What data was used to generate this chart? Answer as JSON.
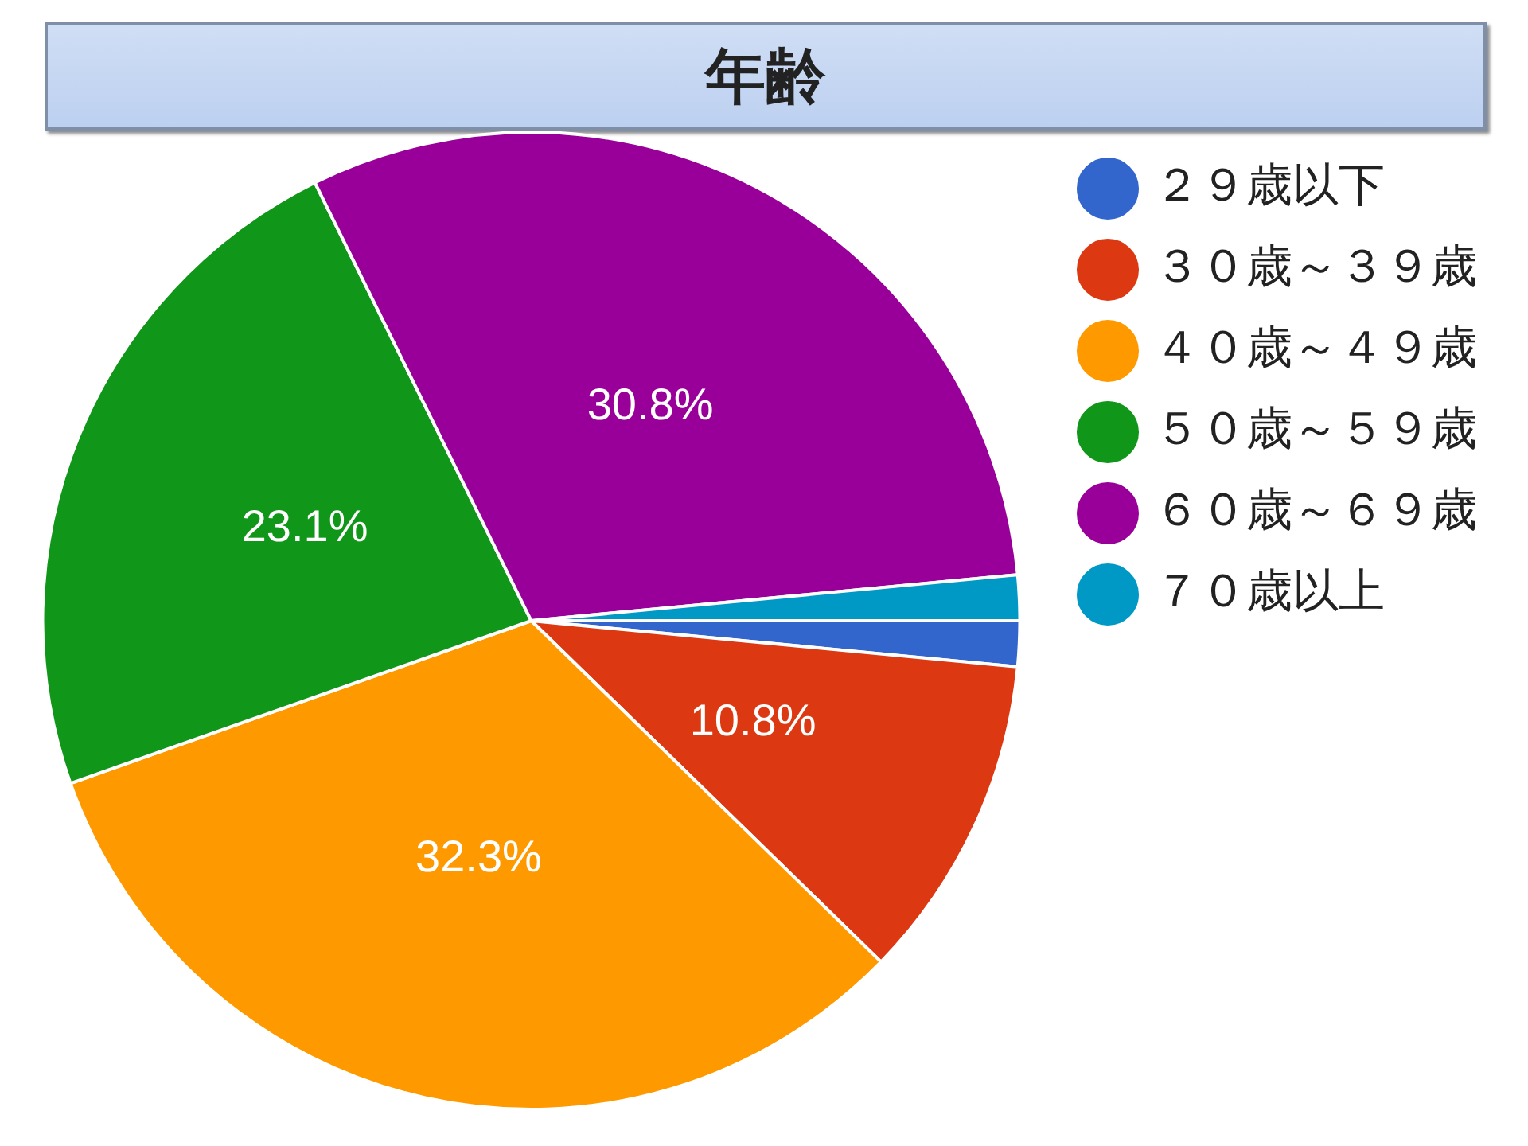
{
  "chart_data": {
    "type": "pie",
    "title": "年齢",
    "categories": [
      "２９歳以下",
      "３０歳～３９歳",
      "４０歳～４９歳",
      "５０歳～５９歳",
      "６０歳～６９歳",
      "７０歳以上"
    ],
    "values": [
      1.5,
      10.8,
      32.3,
      23.1,
      30.8,
      1.5
    ],
    "colors": [
      "#3366cc",
      "#dc3912",
      "#ff9900",
      "#109618",
      "#990099",
      "#0099c6"
    ],
    "value_labels": [
      null,
      "10.8%",
      "32.3%",
      "23.1%",
      "30.8%",
      null
    ],
    "legend": "top right"
  }
}
